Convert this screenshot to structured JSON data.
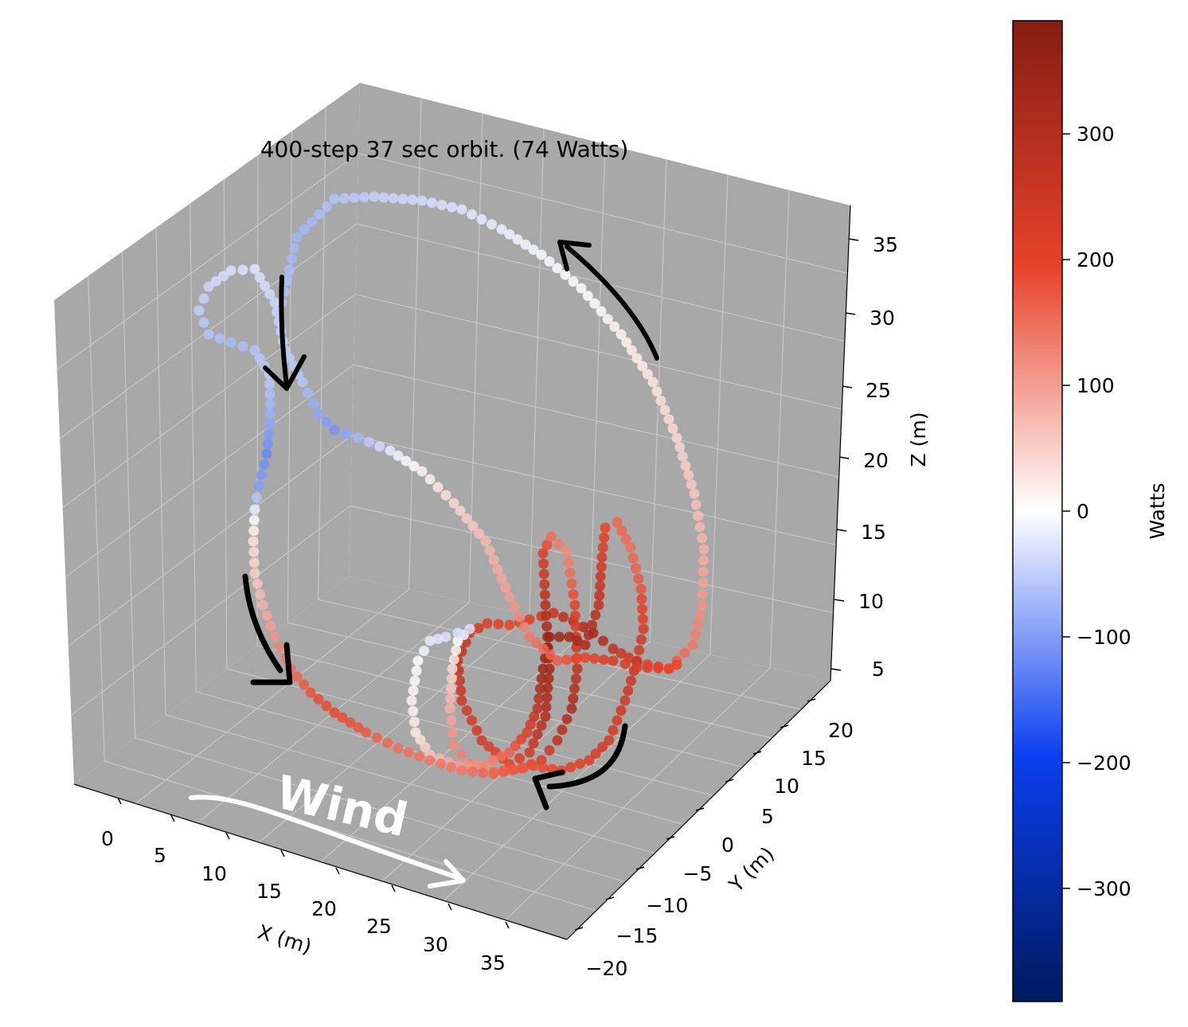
{
  "chart_data": {
    "type": "scatter",
    "title": "400-step 37 sec orbit. (74 Watts)",
    "xlabel": "X (m)",
    "ylabel": "Y (m)",
    "zlabel": "Z (m)",
    "x_ticks": [
      "0",
      "5",
      "10",
      "15",
      "20",
      "25",
      "30",
      "35"
    ],
    "y_ticks": [
      "−20",
      "−15",
      "−10",
      "−5",
      "0",
      "5",
      "10",
      "15",
      "20"
    ],
    "z_ticks": [
      "5",
      "10",
      "15",
      "20",
      "25",
      "30",
      "35"
    ],
    "colorbar": {
      "label": "Watts",
      "ticks": [
        "300",
        "200",
        "100",
        "0",
        "−100",
        "−200",
        "−300"
      ],
      "range": [
        -390,
        390
      ],
      "colormap": [
        "#001a5e",
        "#0a3ff0",
        "#ffffff",
        "#e8422a",
        "#861d12"
      ]
    },
    "pane_color": "#a8a8a8",
    "grid": true,
    "annotations": [
      "Wind"
    ],
    "path_points": [
      [
        354,
        380,
        -60
      ],
      [
        373,
        298,
        -75
      ],
      [
        420,
        250,
        -60
      ],
      [
        470,
        247,
        -45
      ],
      [
        530,
        252,
        -35
      ],
      [
        580,
        263,
        -25
      ],
      [
        630,
        288,
        -15
      ],
      [
        680,
        320,
        -5
      ],
      [
        730,
        362,
        0
      ],
      [
        780,
        420,
        10
      ],
      [
        820,
        480,
        25
      ],
      [
        850,
        550,
        40
      ],
      [
        872,
        620,
        60
      ],
      [
        884,
        690,
        80
      ],
      [
        882,
        760,
        110
      ],
      [
        870,
        810,
        140
      ],
      [
        840,
        840,
        180
      ],
      [
        800,
        832,
        230
      ],
      [
        770,
        815,
        280
      ],
      [
        745,
        795,
        330
      ],
      [
        720,
        780,
        300
      ],
      [
        695,
        770,
        260
      ],
      [
        665,
        778,
        220
      ],
      [
        640,
        785,
        200
      ],
      [
        612,
        783,
        220
      ],
      [
        590,
        795,
        260
      ],
      [
        575,
        830,
        280
      ],
      [
        580,
        880,
        250
      ],
      [
        605,
        930,
        230
      ],
      [
        640,
        960,
        200
      ],
      [
        665,
        945,
        250
      ],
      [
        685,
        900,
        300
      ],
      [
        690,
        840,
        340
      ],
      [
        685,
        760,
        300
      ],
      [
        682,
        695,
        220
      ],
      [
        692,
        674,
        150
      ],
      [
        712,
        693,
        120
      ],
      [
        722,
        760,
        200
      ],
      [
        725,
        840,
        280
      ],
      [
        718,
        890,
        320
      ],
      [
        700,
        930,
        280
      ],
      [
        680,
        955,
        220
      ],
      [
        655,
        965,
        180
      ],
      [
        620,
        970,
        150
      ],
      [
        590,
        960,
        140
      ],
      [
        570,
        935,
        120
      ],
      [
        565,
        890,
        80
      ],
      [
        568,
        840,
        40
      ],
      [
        575,
        805,
        0
      ],
      [
        590,
        790,
        -30
      ],
      [
        560,
        800,
        -30
      ],
      [
        540,
        805,
        -20
      ],
      [
        525,
        830,
        0
      ],
      [
        517,
        880,
        10
      ],
      [
        522,
        920,
        20
      ],
      [
        540,
        948,
        60
      ],
      [
        575,
        962,
        100
      ],
      [
        610,
        960,
        120
      ],
      [
        640,
        945,
        160
      ],
      [
        662,
        920,
        220
      ],
      [
        675,
        890,
        280
      ],
      [
        682,
        840,
        340
      ],
      [
        690,
        800,
        350
      ],
      [
        715,
        800,
        330
      ],
      [
        735,
        810,
        320
      ],
      [
        752,
        760,
        280
      ],
      [
        756,
        700,
        240
      ],
      [
        760,
        663,
        200
      ],
      [
        775,
        656,
        160
      ],
      [
        792,
        688,
        150
      ],
      [
        805,
        740,
        180
      ],
      [
        808,
        790,
        230
      ],
      [
        800,
        830,
        260
      ],
      [
        785,
        880,
        250
      ],
      [
        765,
        930,
        240
      ],
      [
        740,
        955,
        220
      ],
      [
        705,
        968,
        200
      ],
      [
        670,
        962,
        180
      ],
      [
        620,
        972,
        160
      ],
      [
        580,
        968,
        140
      ],
      [
        540,
        955,
        140
      ],
      [
        500,
        940,
        150
      ],
      [
        460,
        920,
        170
      ],
      [
        420,
        895,
        190
      ],
      [
        390,
        870,
        180
      ],
      [
        365,
        840,
        150
      ],
      [
        345,
        800,
        110
      ],
      [
        330,
        760,
        80
      ],
      [
        320,
        720,
        50
      ],
      [
        318,
        680,
        30
      ],
      [
        320,
        640,
        -20
      ],
      [
        325,
        610,
        -100
      ],
      [
        335,
        570,
        -120
      ],
      [
        340,
        520,
        -80
      ],
      [
        338,
        470,
        -50
      ],
      [
        320,
        440,
        -60
      ],
      [
        290,
        430,
        -70
      ],
      [
        262,
        420,
        -60
      ],
      [
        250,
        390,
        -50
      ],
      [
        262,
        360,
        -40
      ],
      [
        290,
        340,
        -30
      ],
      [
        320,
        338,
        -25
      ],
      [
        345,
        380,
        -40
      ],
      [
        358,
        440,
        -50
      ],
      [
        380,
        480,
        -60
      ],
      [
        400,
        520,
        -90
      ],
      [
        420,
        540,
        -110
      ],
      [
        450,
        550,
        -70
      ],
      [
        490,
        566,
        -20
      ],
      [
        530,
        592,
        10
      ],
      [
        570,
        632,
        40
      ],
      [
        610,
        680,
        70
      ],
      [
        640,
        750,
        100
      ],
      [
        665,
        800,
        140
      ],
      [
        700,
        830,
        170
      ],
      [
        735,
        826,
        200
      ],
      [
        770,
        830,
        230
      ],
      [
        800,
        838,
        220
      ],
      [
        840,
        840,
        200
      ],
      [
        860,
        830,
        190
      ]
    ]
  }
}
